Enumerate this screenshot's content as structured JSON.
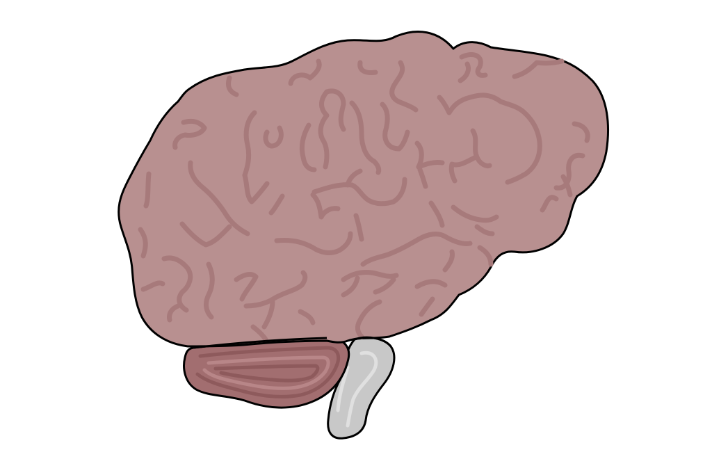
{
  "figure": {
    "subject": "brain-lateral-view",
    "regions": [
      {
        "id": "cerebrum",
        "color": "#b89090"
      },
      {
        "id": "cerebellum",
        "color": "#a26e70"
      },
      {
        "id": "brainstem",
        "color": "#c8c8c8"
      }
    ],
    "colors": {
      "background": "#ffffff",
      "outline": "#000000",
      "cerebrum_fill": "#b89090",
      "cerebrum_sulcus": "#a77a7b",
      "cerebellum_fill": "#a26e70",
      "cerebellum_fold": "#8e5a5c",
      "cerebellum_highlight": "#b88688",
      "brainstem_fill": "#c8c8c8",
      "brainstem_highlight": "#e0e0e0"
    }
  }
}
